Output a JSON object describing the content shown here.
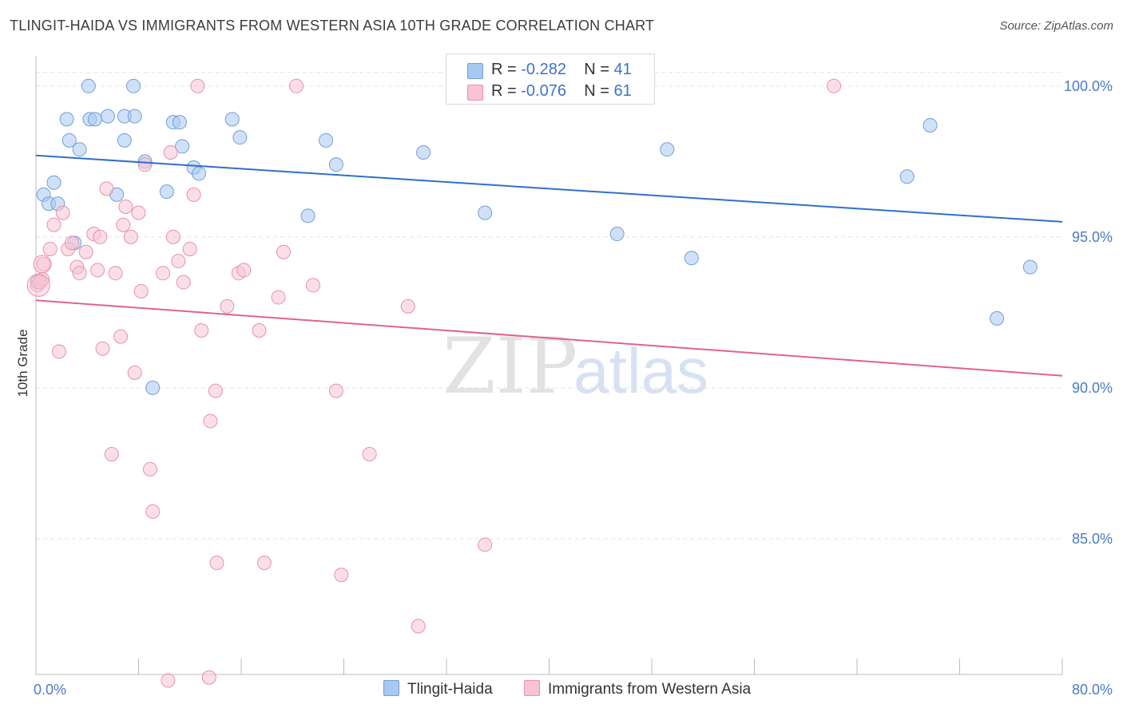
{
  "title": "TLINGIT-HAIDA VS IMMIGRANTS FROM WESTERN ASIA 10TH GRADE CORRELATION CHART",
  "source": "Source: ZipAtlas.com",
  "watermark": {
    "part1": "ZIP",
    "part2": "atlas"
  },
  "legend": {
    "r_label": "R =",
    "n_label": "N =",
    "rows": [
      {
        "r": "-0.282",
        "n": "41",
        "color": "#a9c8f0",
        "border": "#6f9fd8"
      },
      {
        "r": "-0.076",
        "n": "61",
        "color": "#f8c4d4",
        "border": "#e890ad"
      }
    ]
  },
  "bottom_legend": [
    {
      "label": "Tlingit-Haida",
      "color": "#a9c8f0",
      "border": "#6f9fd8"
    },
    {
      "label": "Immigrants from Western Asia",
      "color": "#f8c4d4",
      "border": "#e890ad"
    }
  ],
  "chart_data": {
    "type": "scatter",
    "title": "TLINGIT-HAIDA VS IMMIGRANTS FROM WESTERN ASIA 10TH GRADE CORRELATION CHART",
    "xlabel": "",
    "ylabel": "10th Grade",
    "xlim": [
      0,
      80
    ],
    "ylim": [
      80.5,
      101.0
    ],
    "x_ticks": [
      {
        "v": 0,
        "label": "0.0%"
      },
      {
        "v": 80,
        "label": "80.0%"
      }
    ],
    "x_minor_ticks": [
      0,
      8,
      16,
      24,
      32,
      40,
      48,
      56,
      64,
      72,
      80
    ],
    "y_ticks": [
      {
        "v": 100,
        "label": "100.0%"
      },
      {
        "v": 95,
        "label": "95.0%"
      },
      {
        "v": 90,
        "label": "90.0%"
      },
      {
        "v": 85,
        "label": "85.0%"
      }
    ],
    "grid": true,
    "legend_position": "top-center",
    "series": [
      {
        "name": "Tlingit-Haida",
        "color": "#a9c8f0",
        "stroke": "#6f9fd8",
        "line_color": "#2f6fcc",
        "trend": {
          "x": [
            0,
            80
          ],
          "y": [
            97.7,
            95.5
          ]
        },
        "points": [
          [
            0.1,
            93.5
          ],
          [
            0.6,
            96.4
          ],
          [
            1.0,
            96.1
          ],
          [
            1.4,
            96.8
          ],
          [
            1.7,
            96.1
          ],
          [
            2.4,
            98.9
          ],
          [
            2.6,
            98.2
          ],
          [
            3.0,
            94.8
          ],
          [
            3.4,
            97.9
          ],
          [
            4.2,
            98.9
          ],
          [
            4.6,
            98.9
          ],
          [
            4.1,
            100.0
          ],
          [
            5.6,
            99.0
          ],
          [
            6.3,
            96.4
          ],
          [
            6.9,
            98.2
          ],
          [
            6.9,
            99.0
          ],
          [
            7.7,
            99.0
          ],
          [
            7.6,
            100.0
          ],
          [
            8.5,
            97.5
          ],
          [
            9.1,
            90.0
          ],
          [
            10.2,
            96.5
          ],
          [
            10.7,
            98.8
          ],
          [
            11.2,
            98.8
          ],
          [
            11.4,
            98.0
          ],
          [
            12.3,
            97.3
          ],
          [
            12.7,
            97.1
          ],
          [
            15.3,
            98.9
          ],
          [
            15.9,
            98.3
          ],
          [
            21.2,
            95.7
          ],
          [
            22.6,
            98.2
          ],
          [
            23.4,
            97.4
          ],
          [
            30.2,
            97.8
          ],
          [
            35.0,
            95.8
          ],
          [
            36.2,
            100.0
          ],
          [
            45.3,
            95.1
          ],
          [
            49.2,
            97.9
          ],
          [
            51.1,
            94.3
          ],
          [
            67.9,
            97.0
          ],
          [
            69.7,
            98.7
          ],
          [
            74.9,
            92.3
          ],
          [
            77.5,
            94.0
          ]
        ]
      },
      {
        "name": "Immigrants from Western Asia",
        "color": "#f8c4d4",
        "stroke": "#e890ad",
        "line_color": "#e0628f",
        "trend": {
          "x": [
            0,
            80
          ],
          "y": [
            92.9,
            90.4
          ]
        },
        "points": [
          [
            0.1,
            93.4
          ],
          [
            0.5,
            93.6
          ],
          [
            0.6,
            94.1
          ],
          [
            1.1,
            94.6
          ],
          [
            1.4,
            95.4
          ],
          [
            1.8,
            91.2
          ],
          [
            2.1,
            95.8
          ],
          [
            2.5,
            94.6
          ],
          [
            2.8,
            94.8
          ],
          [
            3.2,
            94.0
          ],
          [
            3.4,
            93.8
          ],
          [
            3.9,
            94.5
          ],
          [
            4.5,
            95.1
          ],
          [
            4.8,
            93.9
          ],
          [
            5.0,
            95.0
          ],
          [
            5.2,
            91.3
          ],
          [
            5.5,
            96.6
          ],
          [
            5.9,
            87.8
          ],
          [
            6.2,
            93.8
          ],
          [
            6.6,
            91.7
          ],
          [
            6.8,
            95.4
          ],
          [
            7.0,
            96.0
          ],
          [
            7.4,
            95.0
          ],
          [
            7.7,
            90.5
          ],
          [
            8.0,
            95.8
          ],
          [
            8.2,
            93.2
          ],
          [
            8.5,
            97.4
          ],
          [
            8.9,
            87.3
          ],
          [
            9.1,
            85.9
          ],
          [
            9.9,
            93.8
          ],
          [
            10.3,
            80.3
          ],
          [
            10.5,
            97.8
          ],
          [
            10.7,
            95.0
          ],
          [
            11.1,
            94.2
          ],
          [
            11.5,
            93.5
          ],
          [
            12.0,
            94.6
          ],
          [
            12.3,
            96.4
          ],
          [
            12.6,
            100.0
          ],
          [
            12.9,
            91.9
          ],
          [
            13.5,
            80.4
          ],
          [
            13.6,
            88.9
          ],
          [
            14.0,
            89.9
          ],
          [
            14.1,
            84.2
          ],
          [
            14.9,
            92.7
          ],
          [
            15.8,
            93.8
          ],
          [
            16.2,
            93.9
          ],
          [
            17.4,
            91.9
          ],
          [
            17.8,
            84.2
          ],
          [
            18.9,
            93.0
          ],
          [
            19.3,
            94.5
          ],
          [
            20.3,
            100.0
          ],
          [
            21.6,
            93.4
          ],
          [
            23.4,
            89.9
          ],
          [
            23.8,
            83.8
          ],
          [
            26.0,
            87.8
          ],
          [
            29.0,
            92.7
          ],
          [
            29.8,
            82.1
          ],
          [
            35.0,
            84.8
          ],
          [
            42.5,
            100.0
          ],
          [
            62.2,
            100.0
          ],
          [
            0.3,
            93.5
          ]
        ]
      }
    ]
  }
}
